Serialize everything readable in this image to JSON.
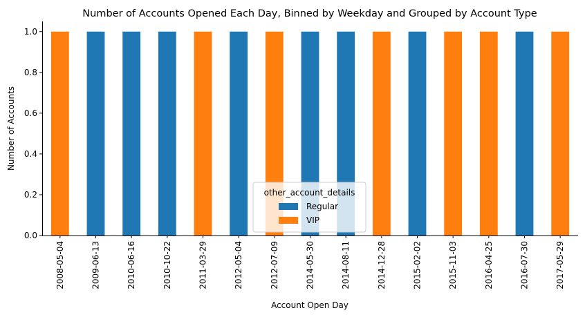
{
  "chart_data": {
    "type": "bar",
    "stacked": true,
    "title": "Number of Accounts Opened Each Day, Binned by Weekday and Grouped by Account Type",
    "xlabel": "Account Open Day",
    "ylabel": "Number of Accounts",
    "ylim": [
      0,
      1.05
    ],
    "yticks": [
      0.0,
      0.2,
      0.4,
      0.6,
      0.8,
      1.0
    ],
    "ytick_labels": [
      "0.0",
      "0.2",
      "0.4",
      "0.6",
      "0.8",
      "1.0"
    ],
    "categories": [
      "2008-05-04",
      "2009-06-13",
      "2010-06-16",
      "2010-10-22",
      "2011-03-29",
      "2012-05-04",
      "2012-07-09",
      "2014-05-30",
      "2014-08-11",
      "2014-12-28",
      "2015-02-02",
      "2015-11-03",
      "2016-04-25",
      "2016-07-30",
      "2017-05-29"
    ],
    "series": [
      {
        "name": "Regular",
        "color": "#1f77b4",
        "values": [
          0,
          1,
          1,
          1,
          0,
          1,
          0,
          1,
          1,
          0,
          1,
          0,
          0,
          1,
          0
        ]
      },
      {
        "name": "VIP",
        "color": "#ff7f0e",
        "values": [
          1,
          0,
          0,
          0,
          1,
          0,
          1,
          0,
          0,
          1,
          0,
          1,
          1,
          0,
          1
        ]
      }
    ],
    "legend": {
      "title": "other_account_details",
      "placement": "lower-center"
    },
    "grid": false
  }
}
